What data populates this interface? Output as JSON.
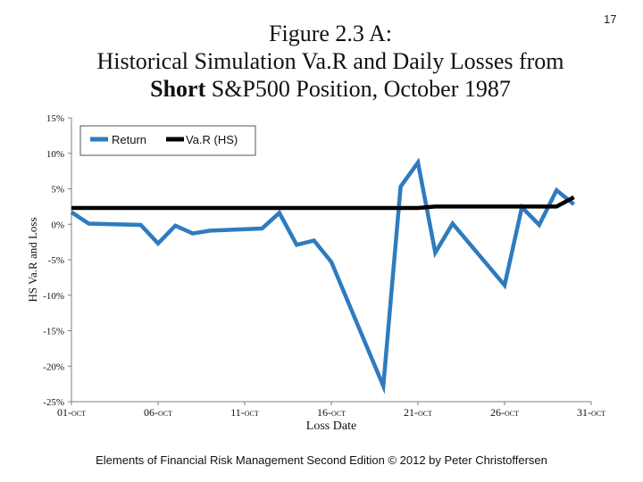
{
  "page_number": "17",
  "title": {
    "line1": "Figure 2.3 A:",
    "line2": "Historical Simulation Va.R and Daily Losses from",
    "line3_bold": "Short",
    "line3_rest": " S&P500 Position, October 1987"
  },
  "footer": "Elements of Financial Risk Management Second Edition © 2012  by Peter Christoffersen",
  "colors": {
    "return": "#2e7bbf",
    "var": "#000000",
    "axis": "#7f7f7f"
  },
  "chart_data": {
    "type": "line",
    "title": "",
    "xlabel": "Loss Date",
    "ylabel": "HS Va.R and Loss",
    "xlim": [
      "1987-10-01",
      "1987-10-31"
    ],
    "ylim": [
      -25,
      15
    ],
    "x_tick_labels": [
      "01-Oct",
      "06-Oct",
      "11-Oct",
      "16-Oct",
      "21-Oct",
      "26-Oct",
      "31-Oct"
    ],
    "x_tick_display": [
      {
        "main": "01-",
        "small": "OCT"
      },
      {
        "main": "06-",
        "small": "OCT"
      },
      {
        "main": "11-",
        "small": "OCT"
      },
      {
        "main": "16-",
        "small": "OCT"
      },
      {
        "main": "21-",
        "small": "OCT"
      },
      {
        "main": "26-",
        "small": "OCT"
      },
      {
        "main": "31-",
        "small": "OCT"
      }
    ],
    "y_ticks": [
      15,
      10,
      5,
      0,
      -5,
      -10,
      -15,
      -20,
      -25
    ],
    "y_tick_labels": [
      "15%",
      "10%",
      "5%",
      "0%",
      "-5%",
      "-10%",
      "-15%",
      "-20%",
      "-25%"
    ],
    "legend_position": "top-left",
    "grid": false,
    "series": [
      {
        "name": "Return",
        "x": [
          "1987-10-01",
          "1987-10-02",
          "1987-10-05",
          "1987-10-06",
          "1987-10-07",
          "1987-10-08",
          "1987-10-09",
          "1987-10-12",
          "1987-10-13",
          "1987-10-14",
          "1987-10-15",
          "1987-10-16",
          "1987-10-19",
          "1987-10-20",
          "1987-10-21",
          "1987-10-22",
          "1987-10-23",
          "1987-10-26",
          "1987-10-27",
          "1987-10-28",
          "1987-10-29",
          "1987-10-30"
        ],
        "values": [
          1.7,
          0.1,
          -0.1,
          -2.7,
          -0.2,
          -1.3,
          -0.9,
          -0.6,
          1.6,
          -2.9,
          -2.3,
          -5.3,
          -22.8,
          5.3,
          8.7,
          -4.0,
          0.1,
          -8.6,
          2.4,
          -0.1,
          4.8,
          2.8
        ]
      },
      {
        "name": "Va.R (HS)",
        "x": [
          "1987-10-01",
          "1987-10-02",
          "1987-10-05",
          "1987-10-06",
          "1987-10-07",
          "1987-10-08",
          "1987-10-09",
          "1987-10-12",
          "1987-10-13",
          "1987-10-14",
          "1987-10-15",
          "1987-10-16",
          "1987-10-19",
          "1987-10-20",
          "1987-10-21",
          "1987-10-22",
          "1987-10-23",
          "1987-10-26",
          "1987-10-27",
          "1987-10-28",
          "1987-10-29",
          "1987-10-30"
        ],
        "values": [
          2.3,
          2.3,
          2.3,
          2.3,
          2.3,
          2.3,
          2.3,
          2.3,
          2.3,
          2.3,
          2.3,
          2.3,
          2.3,
          2.3,
          2.3,
          2.5,
          2.5,
          2.5,
          2.5,
          2.5,
          2.5,
          3.8
        ]
      }
    ]
  }
}
